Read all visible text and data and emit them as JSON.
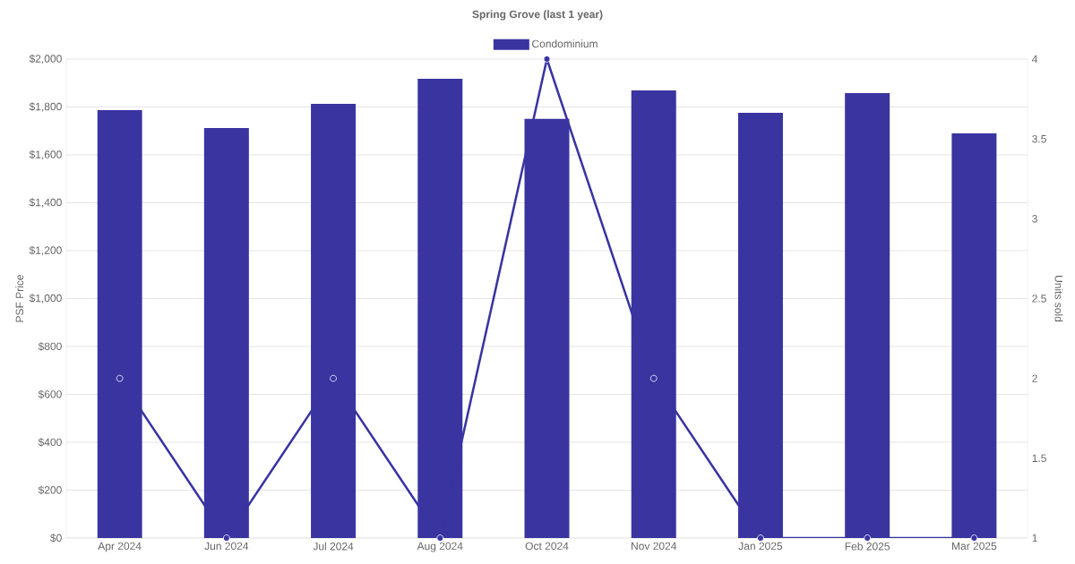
{
  "chart_data": {
    "type": "bar",
    "title": "Spring Grove (last 1 year)",
    "categories": [
      "Apr 2024",
      "Jun 2024",
      "Jul 2024",
      "Aug 2024",
      "Oct 2024",
      "Nov 2024",
      "Jan 2025",
      "Feb 2025",
      "Mar 2025"
    ],
    "ylabel": "PSF Price",
    "y2label": "Units sold",
    "series": [
      {
        "name": "Condominium",
        "color": "#3934a0",
        "values": [
          1787,
          1712,
          1813,
          1918,
          1750,
          1869,
          1776,
          1858,
          1690
        ]
      },
      {
        "type": "line",
        "axis": "y2",
        "color": "#3934a0",
        "marker": "circle",
        "values": [
          2,
          1,
          2,
          1,
          4,
          2,
          1,
          1,
          1
        ]
      }
    ],
    "ylim": [
      0,
      2000
    ],
    "yticks": [
      {
        "value": 0,
        "label": "$0"
      },
      {
        "value": 200,
        "label": "$200"
      },
      {
        "value": 400,
        "label": "$400"
      },
      {
        "value": 600,
        "label": "$600"
      },
      {
        "value": 800,
        "label": "$800"
      },
      {
        "value": 1000,
        "label": "$1,000"
      },
      {
        "value": 1200,
        "label": "$1,200"
      },
      {
        "value": 1400,
        "label": "$1,400"
      },
      {
        "value": 1600,
        "label": "$1,600"
      },
      {
        "value": 1800,
        "label": "$1,800"
      },
      {
        "value": 2000,
        "label": "$2,000"
      }
    ],
    "y2lim": [
      1,
      4
    ],
    "y2ticks": [
      1,
      1.5,
      2,
      2.5,
      3,
      3.5,
      4
    ],
    "grid": "y",
    "legend": "top"
  }
}
